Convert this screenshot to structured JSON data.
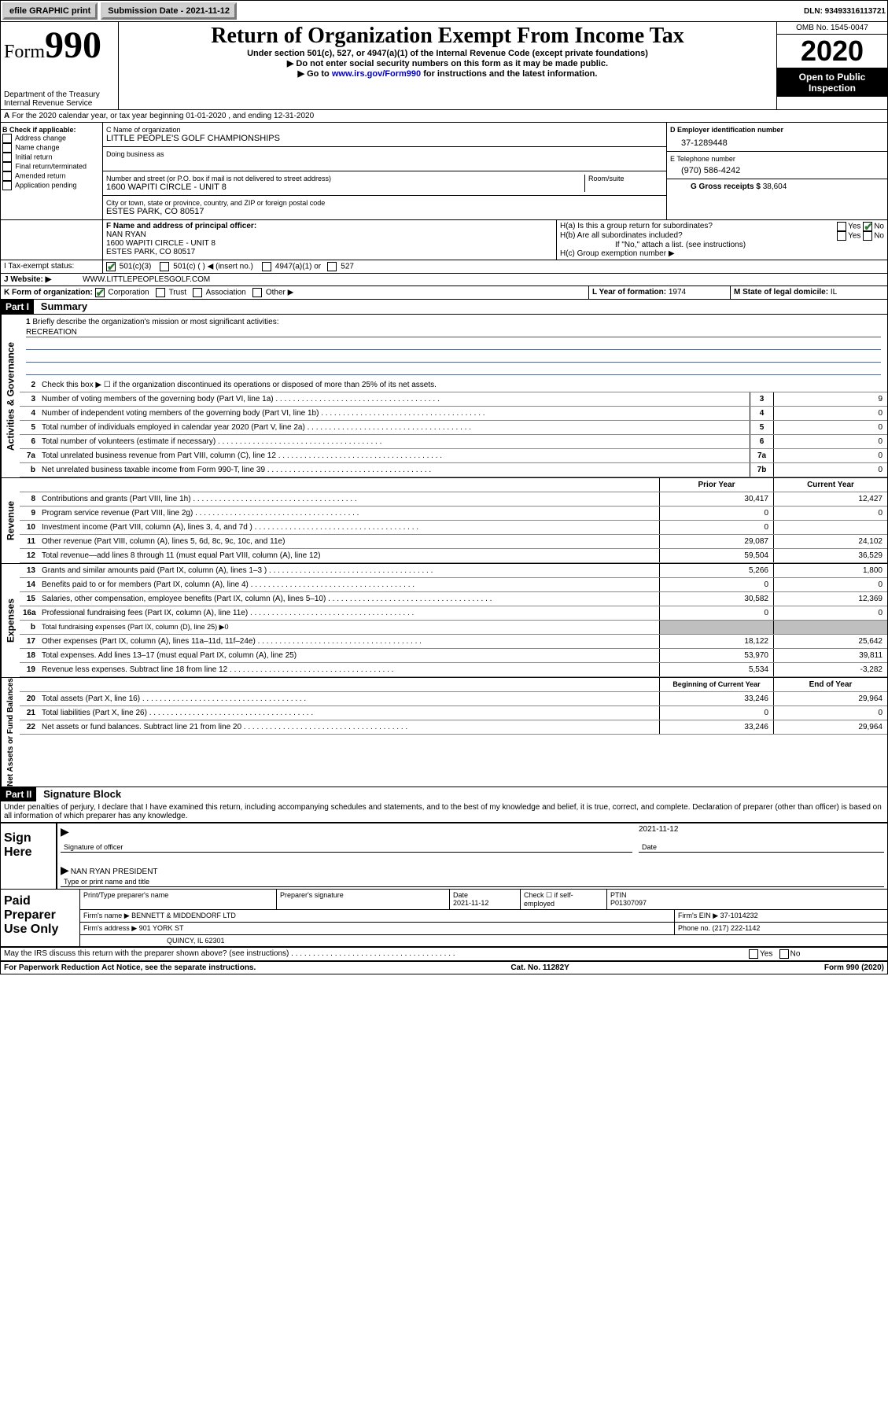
{
  "topbar": {
    "efile": "efile GRAPHIC print",
    "sub_label": "Submission Date - ",
    "sub_date": "2021-11-12",
    "dln": "DLN: 93493316113721"
  },
  "header": {
    "form": "Form",
    "form_no": "990",
    "dept1": "Department of the Treasury",
    "dept2": "Internal Revenue Service",
    "title": "Return of Organization Exempt From Income Tax",
    "sub": "Under section 501(c), 527, or 4947(a)(1) of the Internal Revenue Code (except private foundations)",
    "instr1": "▶ Do not enter social security numbers on this form as it may be made public.",
    "instr2_pre": "▶ Go to ",
    "instr2_link": "www.irs.gov/Form990",
    "instr2_post": " for instructions and the latest information.",
    "omb": "OMB No. 1545-0047",
    "year": "2020",
    "open": "Open to Public Inspection"
  },
  "section_a": "For the 2020 calendar year, or tax year beginning 01-01-2020    , and ending 12-31-2020",
  "b": {
    "hdr": "B Check if applicable:",
    "items": [
      "Address change",
      "Name change",
      "Initial return",
      "Final return/terminated",
      "Amended return",
      "Application pending"
    ]
  },
  "c": {
    "name_lbl": "C Name of organization",
    "name": "LITTLE PEOPLE'S GOLF CHAMPIONSHIPS",
    "dba_lbl": "Doing business as",
    "street_lbl": "Number and street (or P.O. box if mail is not delivered to street address)",
    "room_lbl": "Room/suite",
    "street": "1600 WAPITI CIRCLE - UNIT 8",
    "city_lbl": "City or town, state or province, country, and ZIP or foreign postal code",
    "city": "ESTES PARK, CO  80517"
  },
  "d": {
    "lbl": "D Employer identification number",
    "val": "37-1289448"
  },
  "e": {
    "lbl": "E Telephone number",
    "val": "(970) 586-4242"
  },
  "g": {
    "lbl": "G Gross receipts $ ",
    "val": "38,604"
  },
  "f": {
    "lbl": "F  Name and address of principal officer:",
    "name": "NAN RYAN",
    "addr1": "1600 WAPITI CIRCLE - UNIT 8",
    "addr2": "ESTES PARK, CO  80517"
  },
  "h": {
    "a": "H(a)  Is this a group return for subordinates?",
    "b": "H(b)  Are all subordinates included?",
    "b_note": "If \"No,\" attach a list. (see instructions)",
    "c": "H(c)  Group exemption number ▶"
  },
  "i": {
    "lbl": "I   Tax-exempt status:",
    "o1": "501(c)(3)",
    "o2": "501(c) (  ) ◀ (insert no.)",
    "o3": "4947(a)(1) or",
    "o4": "527"
  },
  "j": {
    "lbl": "J    Website: ▶",
    "val": "  WWW.LITTLEPEOPLESGOLF.COM"
  },
  "k": {
    "lbl": "K Form of organization:",
    "o1": "Corporation",
    "o2": "Trust",
    "o3": "Association",
    "o4": "Other ▶"
  },
  "l": {
    "lbl": "L Year of formation: ",
    "val": "1974"
  },
  "m": {
    "lbl": "M State of legal domicile: ",
    "val": "IL"
  },
  "part1": {
    "hdr": "Part I",
    "title": "Summary"
  },
  "briefly": {
    "num": "1",
    "txt": "Briefly describe the organization's mission or most significant activities:",
    "val": "RECREATION"
  },
  "line2": {
    "num": "2",
    "txt": "Check this box ▶ ☐  if the organization discontinued its operations or disposed of more than 25% of its net assets."
  },
  "governance": [
    {
      "n": "3",
      "t": "Number of voting members of the governing body (Part VI, line 1a)",
      "b": "3",
      "v": "9"
    },
    {
      "n": "4",
      "t": "Number of independent voting members of the governing body (Part VI, line 1b)",
      "b": "4",
      "v": "0"
    },
    {
      "n": "5",
      "t": "Total number of individuals employed in calendar year 2020 (Part V, line 2a)",
      "b": "5",
      "v": "0"
    },
    {
      "n": "6",
      "t": "Total number of volunteers (estimate if necessary)",
      "b": "6",
      "v": "0"
    },
    {
      "n": "7a",
      "t": "Total unrelated business revenue from Part VIII, column (C), line 12",
      "b": "7a",
      "v": "0"
    },
    {
      "n": "b",
      "t": "Net unrelated business taxable income from Form 990-T, line 39",
      "b": "7b",
      "v": "0"
    }
  ],
  "col_hdr": {
    "prior": "Prior Year",
    "current": "Current Year"
  },
  "revenue": [
    {
      "n": "8",
      "t": "Contributions and grants (Part VIII, line 1h)",
      "p": "30,417",
      "c": "12,427"
    },
    {
      "n": "9",
      "t": "Program service revenue (Part VIII, line 2g)",
      "p": "0",
      "c": "0"
    },
    {
      "n": "10",
      "t": "Investment income (Part VIII, column (A), lines 3, 4, and 7d )",
      "p": "0",
      "c": ""
    },
    {
      "n": "11",
      "t": "Other revenue (Part VIII, column (A), lines 5, 6d, 8c, 9c, 10c, and 11e)",
      "p": "29,087",
      "c": "24,102"
    },
    {
      "n": "12",
      "t": "Total revenue—add lines 8 through 11 (must equal Part VIII, column (A), line 12)",
      "p": "59,504",
      "c": "36,529"
    }
  ],
  "expenses": [
    {
      "n": "13",
      "t": "Grants and similar amounts paid (Part IX, column (A), lines 1–3 )",
      "p": "5,266",
      "c": "1,800"
    },
    {
      "n": "14",
      "t": "Benefits paid to or for members (Part IX, column (A), line 4)",
      "p": "0",
      "c": "0"
    },
    {
      "n": "15",
      "t": "Salaries, other compensation, employee benefits (Part IX, column (A), lines 5–10)",
      "p": "30,582",
      "c": "12,369"
    },
    {
      "n": "16a",
      "t": "Professional fundraising fees (Part IX, column (A), line 11e)",
      "p": "0",
      "c": "0"
    },
    {
      "n": "b",
      "t": "Total fundraising expenses (Part IX, column (D), line 25) ▶0",
      "p": "GREY",
      "c": "GREY",
      "small": true
    },
    {
      "n": "17",
      "t": "Other expenses (Part IX, column (A), lines 11a–11d, 11f–24e)",
      "p": "18,122",
      "c": "25,642"
    },
    {
      "n": "18",
      "t": "Total expenses. Add lines 13–17 (must equal Part IX, column (A), line 25)",
      "p": "53,970",
      "c": "39,811"
    },
    {
      "n": "19",
      "t": "Revenue less expenses. Subtract line 18 from line 12",
      "p": "5,534",
      "c": "-3,282"
    }
  ],
  "col_hdr2": {
    "prior": "Beginning of Current Year",
    "current": "End of Year"
  },
  "netassets": [
    {
      "n": "20",
      "t": "Total assets (Part X, line 16)",
      "p": "33,246",
      "c": "29,964"
    },
    {
      "n": "21",
      "t": "Total liabilities (Part X, line 26)",
      "p": "0",
      "c": "0"
    },
    {
      "n": "22",
      "t": "Net assets or fund balances. Subtract line 21 from line 20",
      "p": "33,246",
      "c": "29,964"
    }
  ],
  "vert": {
    "g": "Activities & Governance",
    "r": "Revenue",
    "e": "Expenses",
    "n": "Net Assets or Fund Balances"
  },
  "part2": {
    "hdr": "Part II",
    "title": "Signature Block"
  },
  "penalty": "Under penalties of perjury, I declare that I have examined this return, including accompanying schedules and statements, and to the best of my knowledge and belief, it is true, correct, and complete. Declaration of preparer (other than officer) is based on all information of which preparer has any knowledge.",
  "sign": {
    "here": "Sign Here",
    "sig_lbl": "Signature of officer",
    "date_lbl": "Date",
    "date": "2021-11-12",
    "name": "NAN RYAN PRESIDENT",
    "name_lbl": "Type or print name and title"
  },
  "prep": {
    "here": "Paid Preparer Use Only",
    "r1": {
      "a": "Print/Type preparer's name",
      "b": "Preparer's signature",
      "c": "Date",
      "cd": "2021-11-12",
      "d": "Check ☐ if self-employed",
      "e": "PTIN",
      "ev": "P01307097"
    },
    "r2": {
      "a": "Firm's name    ▶ ",
      "av": "BENNETT & MIDDENDORF LTD",
      "b": "Firm's EIN ▶ ",
      "bv": "37-1014232"
    },
    "r3": {
      "a": "Firm's address ▶ ",
      "av": "901 YORK ST",
      "b": "Phone no. ",
      "bv": "(217) 222-1142"
    },
    "r4": {
      "av": "QUINCY, IL  62301"
    }
  },
  "discuss": "May the IRS discuss this return with the preparer shown above? (see instructions)",
  "footer": {
    "a": "For Paperwork Reduction Act Notice, see the separate instructions.",
    "b": "Cat. No. 11282Y",
    "c": "Form 990 (2020)"
  }
}
